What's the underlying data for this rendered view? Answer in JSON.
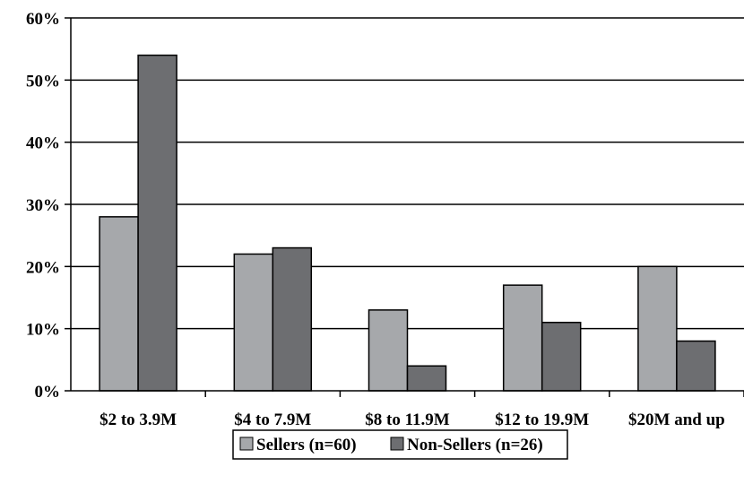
{
  "chart_data": {
    "type": "bar",
    "categories": [
      "$2 to 3.9M",
      "$4 to 7.9M",
      "$8 to 11.9M",
      "$12 to 19.9M",
      "$20M and up"
    ],
    "series": [
      {
        "name": "Sellers (n=60)",
        "values": [
          28,
          22,
          13,
          17,
          20
        ],
        "color": "#a6a8ab"
      },
      {
        "name": "Non-Sellers (n=26)",
        "values": [
          54,
          23,
          4,
          11,
          8
        ],
        "color": "#6d6e71"
      }
    ],
    "y_ticks": [
      "0%",
      "10%",
      "20%",
      "30%",
      "40%",
      "50%",
      "60%"
    ],
    "ylim": [
      0,
      60
    ],
    "y_unit": "%",
    "grid": true,
    "legend_position": "bottom-center",
    "title": "",
    "xlabel": "",
    "ylabel": ""
  }
}
